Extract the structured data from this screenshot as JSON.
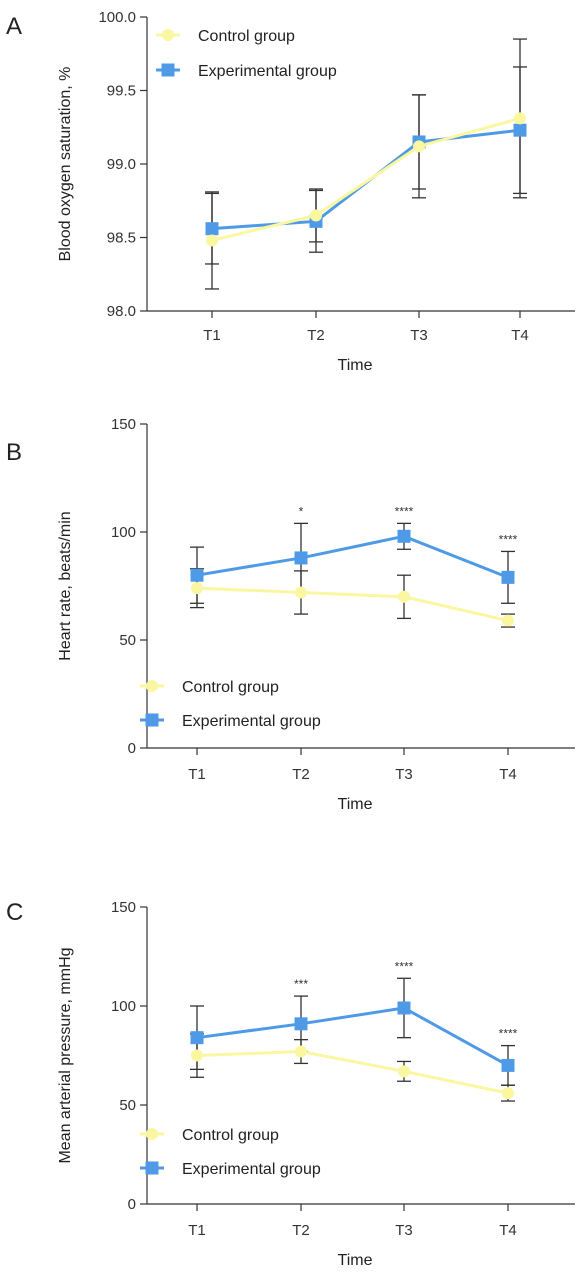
{
  "colors": {
    "control": "#fbf7a0",
    "experimental": "#4f9ae6",
    "error_bar": "#333333",
    "axis": "#333333"
  },
  "chart_data": [
    {
      "type": "line",
      "panel": "A",
      "xlabel": "Time",
      "ylabel": "Blood oxygen saturation, %",
      "categories": [
        "T1",
        "T2",
        "T3",
        "T4"
      ],
      "ylim": [
        98.0,
        100.0
      ],
      "yticks": [
        "98.0",
        "98.5",
        "99.0",
        "99.5",
        "100.0"
      ],
      "legend_position": "top-left",
      "series": [
        {
          "name": "Control group",
          "marker": "circle",
          "values": [
            98.48,
            98.65,
            99.12,
            99.31
          ],
          "error": [
            0.33,
            0.18,
            0.35,
            0.54
          ]
        },
        {
          "name": "Experimental group",
          "marker": "square",
          "values": [
            98.56,
            98.61,
            99.15,
            99.23
          ],
          "error": [
            0.24,
            0.21,
            0.32,
            0.43
          ]
        }
      ],
      "annotations": [
        "",
        "",
        "",
        ""
      ]
    },
    {
      "type": "line",
      "panel": "B",
      "xlabel": "Time",
      "ylabel": "Heart rate, beats/min",
      "categories": [
        "T1",
        "T2",
        "T3",
        "T4"
      ],
      "ylim": [
        0,
        150
      ],
      "yticks": [
        "0",
        "50",
        "100",
        "150"
      ],
      "legend_position": "bottom-left",
      "series": [
        {
          "name": "Control group",
          "marker": "circle",
          "values": [
            74,
            72,
            70,
            59
          ],
          "error": [
            9,
            10,
            10,
            3
          ]
        },
        {
          "name": "Experimental group",
          "marker": "square",
          "values": [
            80,
            88,
            98,
            79
          ],
          "error": [
            13,
            16,
            6,
            12
          ]
        }
      ],
      "annotations": [
        "",
        "*",
        "****",
        "****"
      ]
    },
    {
      "type": "line",
      "panel": "C",
      "xlabel": "Time",
      "ylabel": "Mean arterial pressure, mmHg",
      "categories": [
        "T1",
        "T2",
        "T3",
        "T4"
      ],
      "ylim": [
        0,
        150
      ],
      "yticks": [
        "0",
        "50",
        "100",
        "150"
      ],
      "legend_position": "bottom-left",
      "series": [
        {
          "name": "Control group",
          "marker": "circle",
          "values": [
            75,
            77,
            67,
            56
          ],
          "error": [
            11,
            6,
            5,
            4
          ]
        },
        {
          "name": "Experimental group",
          "marker": "square",
          "values": [
            84,
            91,
            99,
            70
          ],
          "error": [
            16,
            14,
            15,
            10
          ]
        }
      ],
      "annotations": [
        "",
        "***",
        "****",
        "****"
      ]
    }
  ]
}
